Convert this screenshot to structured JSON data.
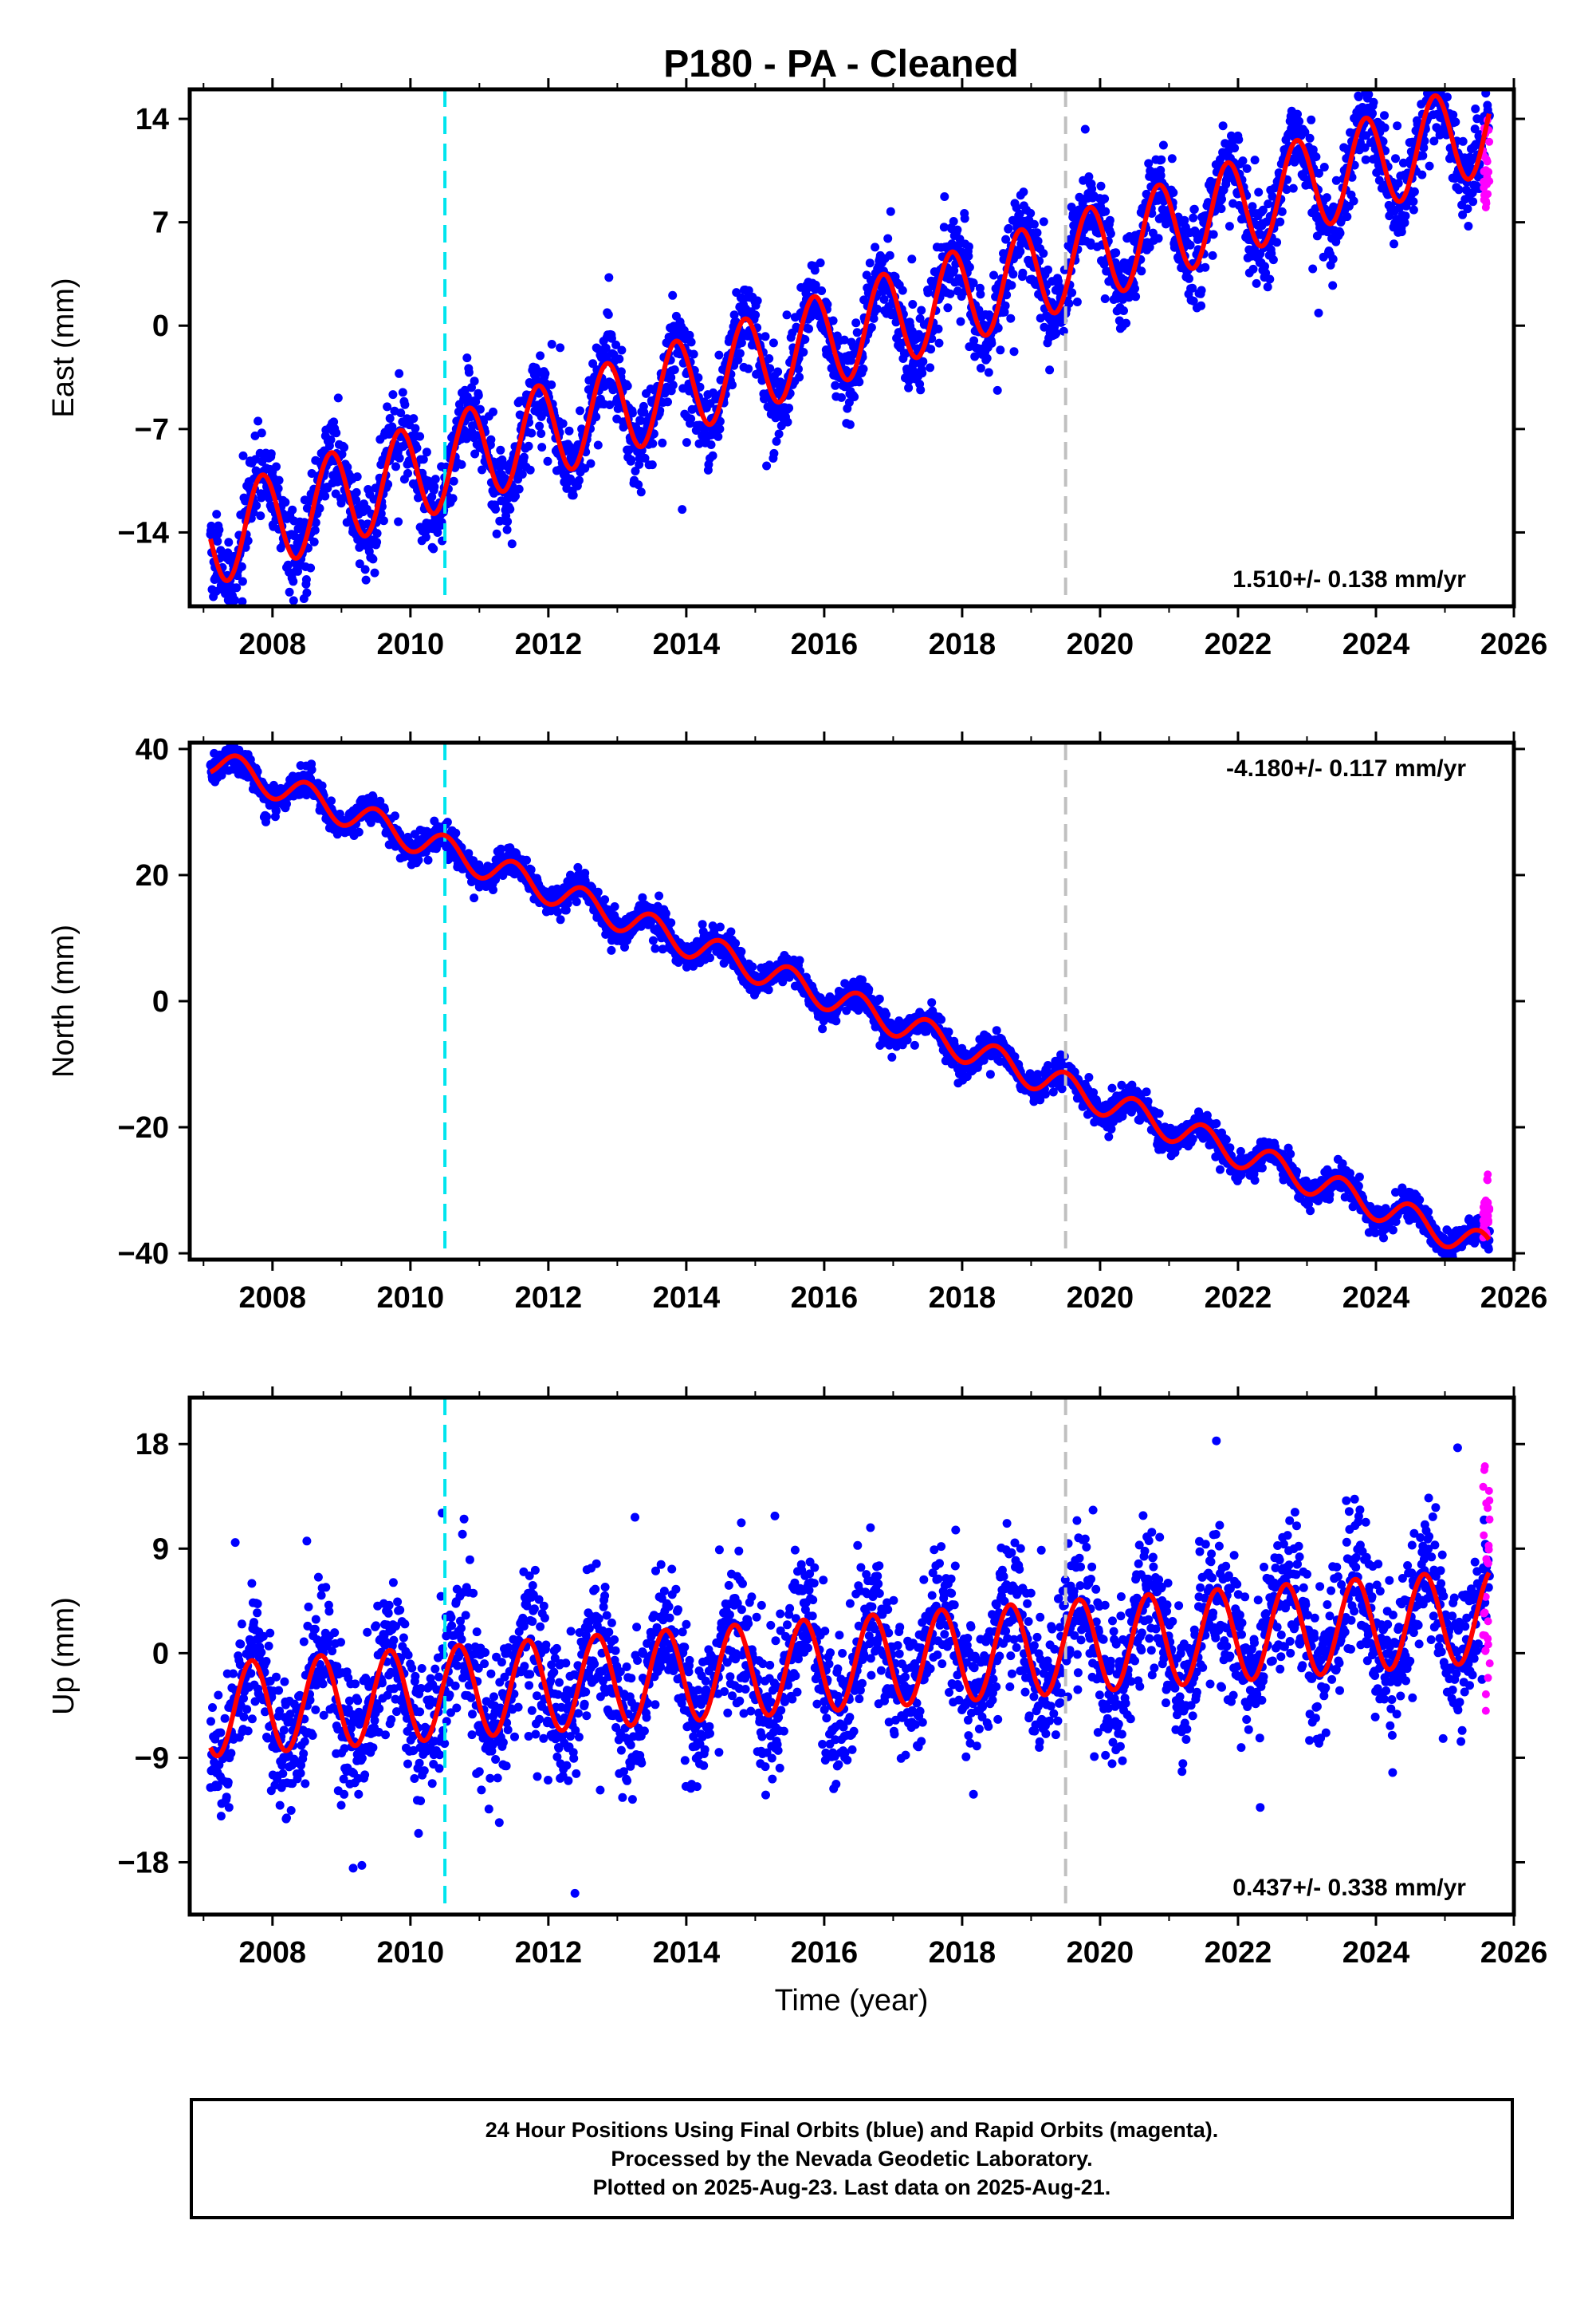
{
  "title": "P180  - PA - Cleaned",
  "xlabel": "Time (year)",
  "footer": {
    "line1": "24 Hour Positions Using Final Orbits (blue) and Rapid Orbits (magenta).",
    "line2": "Processed by the Nevada Geodetic Laboratory.",
    "line3": "Plotted on 2025-Aug-23. Last data on 2025-Aug-21."
  },
  "colors": {
    "final_orbits": "#0000ff",
    "rapid_orbits": "#ff00ff",
    "model_fit": "#ff0000",
    "equipment_change": "#00e5ee",
    "other_event": "#c0c0c0"
  },
  "chart_data": [
    {
      "type": "scatter",
      "name": "east",
      "ylabel": "East (mm)",
      "xlim": [
        2006.8,
        2026.0
      ],
      "ylim": [
        -19,
        16
      ],
      "xticks": [
        2008,
        2010,
        2012,
        2014,
        2016,
        2018,
        2020,
        2022,
        2024,
        2026
      ],
      "yticks": [
        -14,
        -7,
        0,
        7,
        14
      ],
      "rate_label": "1.510+/- 0.138 mm/yr",
      "rate_position": "bottom-right",
      "vertical_lines": [
        {
          "x": 2010.5,
          "color": "cyan",
          "style": "dashed"
        },
        {
          "x": 2019.5,
          "color": "gray",
          "style": "dashed"
        }
      ],
      "model": {
        "t_start": 2007.1,
        "t_end": 2025.65,
        "ref_year": 2016.0,
        "offset": -1.0,
        "rate": 1.51,
        "amplitude": 3.2,
        "annual_peak": 0.85
      },
      "scatter_sigma": 1.4,
      "rapid_x_range": [
        2025.55,
        2025.65
      ],
      "rapid_y_range": [
        8,
        14
      ]
    },
    {
      "type": "scatter",
      "name": "north",
      "ylabel": "North (mm)",
      "xlim": [
        2006.8,
        2026.0
      ],
      "ylim": [
        -41,
        41
      ],
      "xticks": [
        2008,
        2010,
        2012,
        2014,
        2016,
        2018,
        2020,
        2022,
        2024,
        2026
      ],
      "yticks": [
        -40,
        -20,
        0,
        20,
        40
      ],
      "rate_label": "-4.180+/- 0.117 mm/yr",
      "rate_position": "top-right",
      "vertical_lines": [
        {
          "x": 2010.5,
          "color": "cyan",
          "style": "dashed"
        },
        {
          "x": 2019.5,
          "color": "gray",
          "style": "dashed"
        }
      ],
      "model": {
        "t_start": 2007.1,
        "t_end": 2025.65,
        "ref_year": 2016.0,
        "offset": 1.0,
        "rate": -4.18,
        "amplitude": 2.3,
        "annual_peak": 0.5
      },
      "scatter_sigma": 1.1,
      "rapid_x_range": [
        2025.55,
        2025.65
      ],
      "rapid_y_range": [
        -38,
        -27
      ]
    },
    {
      "type": "scatter",
      "name": "up",
      "ylabel": "Up (mm)",
      "xlim": [
        2006.8,
        2026.0
      ],
      "ylim": [
        -22.5,
        22
      ],
      "xticks": [
        2008,
        2010,
        2012,
        2014,
        2016,
        2018,
        2020,
        2022,
        2024,
        2026
      ],
      "yticks": [
        -18,
        -9,
        0,
        9,
        18
      ],
      "rate_label": "0.437+/- 0.338 mm/yr",
      "rate_position": "bottom-right",
      "vertical_lines": [
        {
          "x": 2010.5,
          "color": "cyan",
          "style": "dashed"
        },
        {
          "x": 2019.5,
          "color": "gray",
          "style": "dashed"
        }
      ],
      "model": {
        "t_start": 2007.1,
        "t_end": 2025.65,
        "ref_year": 2016.0,
        "offset": -1.0,
        "rate": 0.437,
        "amplitude": 4.0,
        "annual_peak": 0.7
      },
      "scatter_sigma": 3.0,
      "rapid_x_range": [
        2025.55,
        2025.65
      ],
      "rapid_y_range": [
        -5,
        17
      ]
    }
  ]
}
